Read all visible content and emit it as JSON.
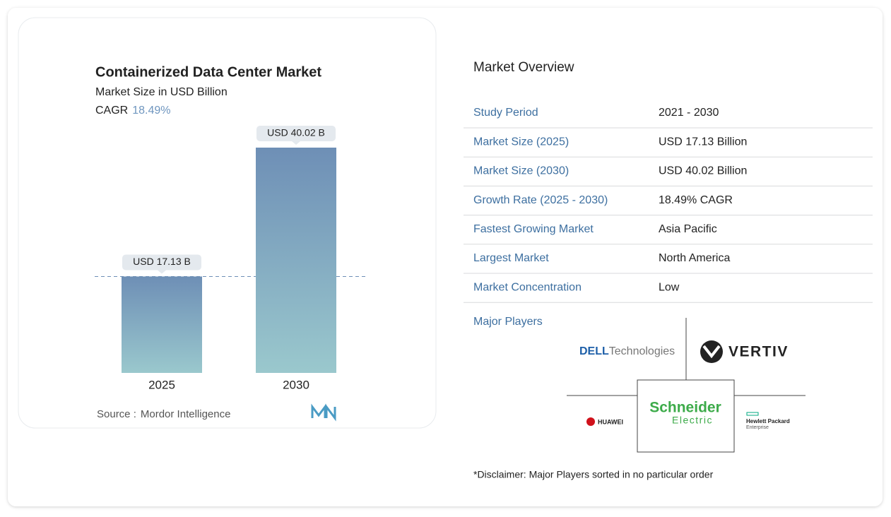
{
  "chart_data": {
    "type": "bar",
    "title": "Containerized Data Center Market",
    "subtitle": "Market Size in USD Billion",
    "cagr_label": "CAGR",
    "cagr_value": "18.49%",
    "categories": [
      "2025",
      "2030"
    ],
    "values": [
      17.13,
      40.02
    ],
    "value_labels": [
      "USD 17.13 B",
      "USD 40.02 B"
    ],
    "source_label": "Source :",
    "source": "Mordor Intelligence"
  },
  "overview": {
    "title": "Market Overview",
    "rows": [
      [
        "Study Period",
        "2021 - 2030"
      ],
      [
        "Market Size (2025)",
        "USD 17.13 Billion"
      ],
      [
        "Market Size (2030)",
        "USD 40.02 Billion"
      ],
      [
        "Growth Rate (2025 - 2030)",
        "18.49% CAGR"
      ],
      [
        "Fastest Growing Market",
        "Asia Pacific"
      ],
      [
        "Largest Market",
        "North America"
      ],
      [
        "Market Concentration",
        "Low"
      ]
    ],
    "players_title": "Major Players",
    "players": [
      [
        "DELL",
        "Technologies"
      ],
      [
        "VERTIV"
      ],
      [
        "Schneider",
        "Electric"
      ],
      [
        "HUAWEI"
      ],
      [
        "Hewlett Packard",
        "Enterprise"
      ]
    ],
    "disclaimer": "*Disclaimer: Major Players sorted in no particular order"
  }
}
